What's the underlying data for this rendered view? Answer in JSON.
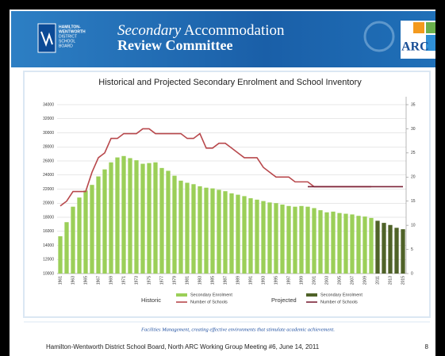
{
  "header": {
    "logo_text": [
      "HAMILTON-",
      "WENTWORTH",
      "DISTRICT",
      "SCHOOL",
      "BOARD"
    ],
    "title_italic": "Secondary",
    "title_rest": "Accommodation",
    "title_line2": "Review Committee",
    "badge": "ARC"
  },
  "chart_data": {
    "type": "bar",
    "title": "Historical and Projected Secondary Enrolment and School Inventory",
    "categories": [
      "1961",
      null,
      "1963",
      null,
      "1965",
      null,
      "1967",
      null,
      "1969",
      null,
      "1971",
      null,
      "1973",
      null,
      "1975",
      null,
      "1977",
      null,
      "1979",
      null,
      "1981",
      null,
      "1983",
      null,
      "1985",
      null,
      "1987",
      null,
      "1989",
      null,
      "1991",
      null,
      "1993",
      null,
      "1995",
      null,
      "1997",
      null,
      "1999",
      null,
      "2001",
      null,
      "2003",
      null,
      "2005",
      null,
      "2007",
      null,
      "2009",
      null,
      "2011",
      null,
      "2013",
      null,
      "2015"
    ],
    "legend_groups": [
      "Historic",
      "Projected"
    ],
    "series": [
      {
        "name": "Secondary Enrolment",
        "type": "bar",
        "color": "#9bcf58",
        "values": [
          15300,
          17300,
          19500,
          20800,
          21800,
          22600,
          23800,
          24800,
          25800,
          26500,
          26700,
          26400,
          26100,
          25600,
          25700,
          25800,
          25000,
          24600,
          23900,
          23200,
          22900,
          22700,
          22400,
          22200,
          22100,
          21900,
          21700,
          21400,
          21200,
          21000,
          20700,
          20500,
          20300,
          20100,
          20000,
          19800,
          19600,
          19500,
          19600,
          19500,
          19300,
          19000,
          18700,
          18800,
          18600,
          18500,
          18400,
          18200,
          18100,
          17900,
          null,
          null,
          null,
          null,
          null
        ]
      },
      {
        "name": "Number of Schools",
        "type": "line",
        "axis": "y2",
        "color": "#b8484c",
        "values": [
          14,
          15,
          17,
          17,
          17,
          21,
          24,
          25,
          28,
          28,
          29,
          29,
          29,
          30,
          30,
          29,
          29,
          29,
          29,
          29,
          28,
          28,
          29,
          26,
          26,
          27,
          27,
          26,
          25,
          24,
          24,
          24,
          22,
          21,
          20,
          20,
          20,
          19,
          19,
          19,
          18,
          18,
          18,
          18,
          18,
          18,
          18,
          18,
          18,
          18,
          null,
          null,
          null,
          null,
          null
        ]
      },
      {
        "name": "Secondary Enrolment",
        "type": "bar",
        "color": "#4f6228",
        "values": [
          null,
          null,
          null,
          null,
          null,
          null,
          null,
          null,
          null,
          null,
          null,
          null,
          null,
          null,
          null,
          null,
          null,
          null,
          null,
          null,
          null,
          null,
          null,
          null,
          null,
          null,
          null,
          null,
          null,
          null,
          null,
          null,
          null,
          null,
          null,
          null,
          null,
          null,
          null,
          null,
          null,
          null,
          null,
          null,
          null,
          null,
          null,
          null,
          null,
          null,
          17500,
          17200,
          16900,
          16500,
          16300
        ]
      },
      {
        "name": "Number of Schools",
        "type": "line",
        "axis": "y2",
        "color": "#7b2338",
        "values": [
          null,
          null,
          null,
          null,
          null,
          null,
          null,
          null,
          null,
          null,
          null,
          null,
          null,
          null,
          null,
          null,
          null,
          null,
          null,
          null,
          null,
          null,
          null,
          null,
          null,
          null,
          null,
          null,
          null,
          null,
          null,
          null,
          null,
          null,
          null,
          null,
          null,
          null,
          null,
          18,
          18,
          18,
          18,
          18,
          18,
          18,
          18,
          18,
          18,
          18,
          18,
          18,
          18,
          18,
          18
        ]
      }
    ],
    "ylim": [
      10000,
      34000
    ],
    "yticks": [
      10000,
      12000,
      14000,
      16000,
      18000,
      20000,
      22000,
      24000,
      26000,
      28000,
      30000,
      32000,
      34000
    ],
    "y2lim": [
      0,
      35
    ],
    "y2ticks": [
      0,
      5,
      10,
      15,
      20,
      25,
      30,
      35
    ],
    "grid": true
  },
  "tagline": "Facilities Management, creating effective environments that stimulate academic achievement.",
  "footer": {
    "text": "Hamilton-Wentworth District School Board, North ARC Working Group Meeting #6, June 14, 2011",
    "page": "8"
  }
}
